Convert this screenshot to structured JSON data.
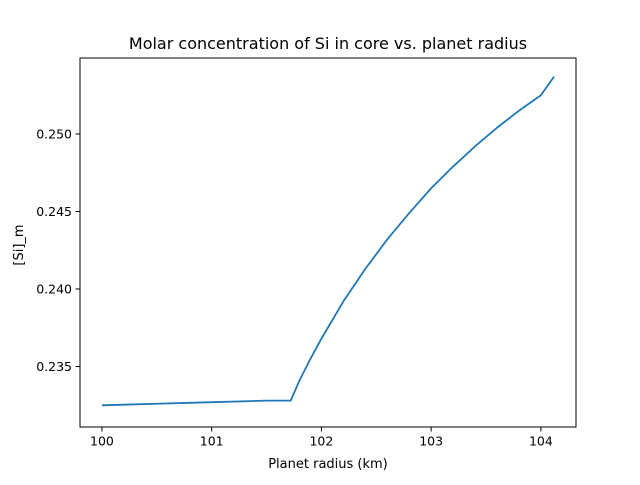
{
  "chart_data": {
    "type": "line",
    "title": "Molar concentration of Si in core vs. planet radius",
    "xlabel": "Planet radius (km)",
    "ylabel": "[Si]_m",
    "xlim": [
      99.8,
      104.32
    ],
    "ylim": [
      0.2311,
      0.2549
    ],
    "x_ticks": [
      100,
      101,
      102,
      103,
      104
    ],
    "x_tick_labels": [
      "100",
      "101",
      "102",
      "103",
      "104"
    ],
    "y_ticks": [
      0.235,
      0.24,
      0.245,
      0.25
    ],
    "y_tick_labels": [
      "0.235",
      "0.240",
      "0.245",
      "0.250"
    ],
    "grid": false,
    "legend": "none",
    "series": [
      {
        "color": "#1f77b4",
        "x": [
          100.0,
          100.5,
          101.0,
          101.5,
          101.72,
          101.8,
          101.9,
          102.0,
          102.2,
          102.4,
          102.6,
          102.8,
          103.0,
          103.2,
          103.4,
          103.6,
          103.8,
          104.0,
          104.12
        ],
        "y": [
          0.2325,
          0.2326,
          0.2327,
          0.2328,
          0.2328,
          0.2341,
          0.2355,
          0.2368,
          0.2392,
          0.2413,
          0.2432,
          0.2449,
          0.2465,
          0.2479,
          0.2492,
          0.2504,
          0.2515,
          0.2525,
          0.2537
        ]
      }
    ]
  }
}
